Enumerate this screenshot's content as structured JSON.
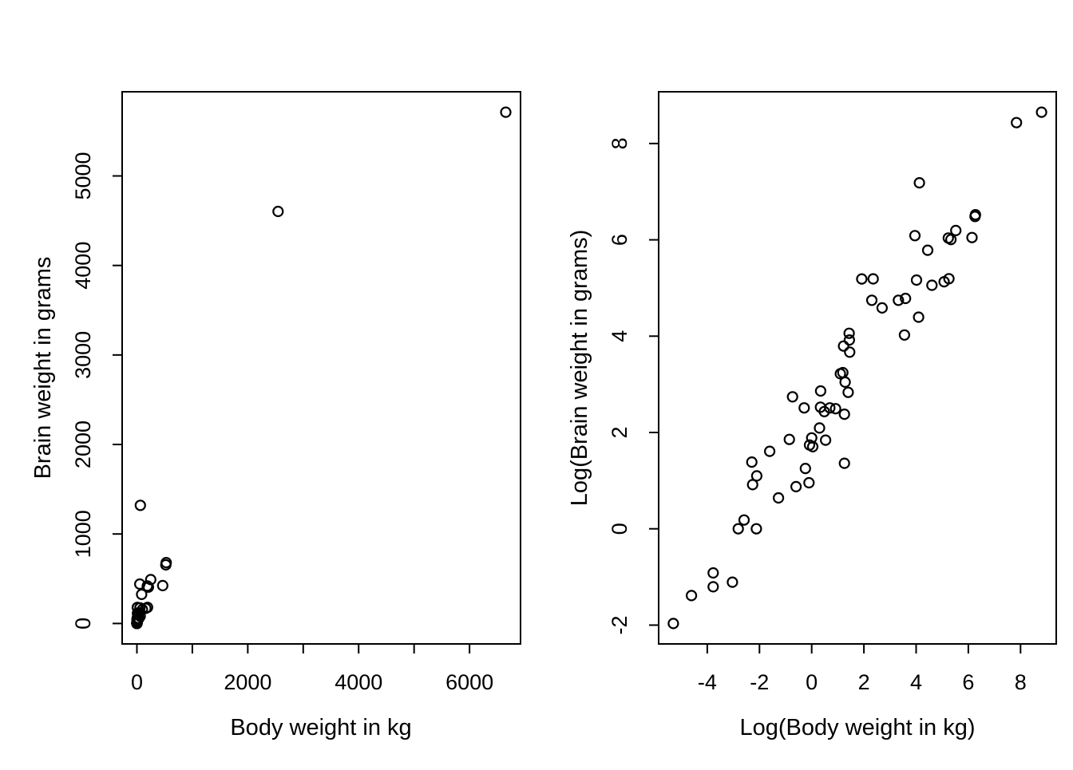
{
  "figure": {
    "background": "#ffffff",
    "foreground": "#000000",
    "marker_color": "#000000",
    "description": "Two side-by-side scatter plots of mammal brain weight versus body weight: raw scale (left) and natural-log scale (right)"
  },
  "chart_data": [
    {
      "type": "scatter",
      "title": "",
      "xlabel": "Body weight in kg",
      "ylabel": "Brain weight in grams",
      "marker": "open-circle",
      "grid": false,
      "legend": null,
      "xlim": [
        0.005,
        6654
      ],
      "ylim": [
        0.14,
        5712
      ],
      "axis_expansion": 0.04,
      "x_ticks": {
        "values": [
          0,
          1000,
          2000,
          3000,
          4000,
          5000,
          6000
        ],
        "labels": [
          "0",
          "",
          "2000",
          "",
          "4000",
          "",
          "6000"
        ]
      },
      "y_ticks": {
        "values": [
          0,
          1000,
          2000,
          3000,
          4000,
          5000
        ],
        "labels": [
          "0",
          "1000",
          "2000",
          "3000",
          "4000",
          "5000"
        ]
      },
      "points": [
        [
          3.385,
          44.5
        ],
        [
          0.48,
          15.5
        ],
        [
          1.35,
          8.1
        ],
        [
          465,
          423
        ],
        [
          36.33,
          119.5
        ],
        [
          27.66,
          115
        ],
        [
          14.83,
          98.2
        ],
        [
          1.04,
          5.5
        ],
        [
          4.19,
          58
        ],
        [
          0.425,
          6.4
        ],
        [
          0.101,
          4
        ],
        [
          0.92,
          5.7
        ],
        [
          1,
          6.6
        ],
        [
          0.005,
          0.14
        ],
        [
          0.06,
          1
        ],
        [
          3.5,
          10.8
        ],
        [
          2,
          12.3
        ],
        [
          1.7,
          6.3
        ],
        [
          2547,
          4603
        ],
        [
          0.023,
          0.3
        ],
        [
          187.1,
          419
        ],
        [
          521,
          655
        ],
        [
          0.785,
          3.5
        ],
        [
          10,
          115
        ],
        [
          3.3,
          25.6
        ],
        [
          0.2,
          5
        ],
        [
          1.41,
          17.5
        ],
        [
          529,
          680
        ],
        [
          207,
          406
        ],
        [
          85,
          325
        ],
        [
          0.75,
          12.3
        ],
        [
          62,
          1320
        ],
        [
          6654,
          5712
        ],
        [
          3.5,
          3.9
        ],
        [
          6.8,
          179
        ],
        [
          35,
          56
        ],
        [
          4.05,
          17
        ],
        [
          0.12,
          1
        ],
        [
          0.023,
          0.4
        ],
        [
          0.01,
          0.25
        ],
        [
          1.4,
          12.5
        ],
        [
          250,
          490
        ],
        [
          2.5,
          12.1
        ],
        [
          55.5,
          175
        ],
        [
          100,
          157
        ],
        [
          52.16,
          440
        ],
        [
          10.55,
          179.5
        ],
        [
          0.55,
          2.4
        ],
        [
          60,
          81
        ],
        [
          3.6,
          21
        ],
        [
          4.288,
          39.2
        ],
        [
          0.28,
          1.9
        ],
        [
          0.075,
          1.2
        ],
        [
          0.122,
          3
        ],
        [
          0.048,
          0.33
        ],
        [
          192,
          180
        ],
        [
          3,
          25
        ],
        [
          160,
          169
        ],
        [
          0.9,
          2.6
        ],
        [
          1.62,
          11.4
        ],
        [
          0.104,
          2.5
        ],
        [
          4.235,
          50.4
        ]
      ]
    },
    {
      "type": "scatter",
      "title": "",
      "xlabel": "Log(Body weight in kg)",
      "ylabel": "Log(Brain weight in grams)",
      "marker": "open-circle",
      "grid": false,
      "legend": null,
      "xlim": [
        -5.298,
        8.803
      ],
      "ylim": [
        -1.966,
        8.65
      ],
      "axis_expansion": 0.04,
      "x_ticks": {
        "values": [
          -4,
          -2,
          0,
          2,
          4,
          6,
          8
        ],
        "labels": [
          "-4",
          "-2",
          "0",
          "2",
          "4",
          "6",
          "8"
        ]
      },
      "y_ticks": {
        "values": [
          -2,
          0,
          2,
          4,
          6,
          8
        ],
        "labels": [
          "-2",
          "0",
          "2",
          "4",
          "6",
          "8"
        ]
      },
      "points": [
        [
          1.219,
          3.795
        ],
        [
          -0.734,
          2.741
        ],
        [
          0.3,
          2.092
        ],
        [
          6.142,
          6.047
        ],
        [
          3.593,
          4.783
        ],
        [
          3.32,
          4.745
        ],
        [
          2.697,
          4.587
        ],
        [
          0.039,
          1.705
        ],
        [
          1.433,
          4.06
        ],
        [
          -0.856,
          1.856
        ],
        [
          -2.293,
          1.386
        ],
        [
          -0.083,
          1.74
        ],
        [
          0,
          1.887
        ],
        [
          -5.298,
          -1.966
        ],
        [
          -2.813,
          0
        ],
        [
          1.253,
          2.38
        ],
        [
          0.693,
          2.51
        ],
        [
          0.531,
          1.841
        ],
        [
          7.843,
          8.434
        ],
        [
          -3.772,
          -1.204
        ],
        [
          5.232,
          6.038
        ],
        [
          6.256,
          6.485
        ],
        [
          -0.242,
          1.253
        ],
        [
          2.303,
          4.745
        ],
        [
          1.194,
          3.243
        ],
        [
          -1.609,
          1.609
        ],
        [
          0.344,
          2.862
        ],
        [
          6.271,
          6.522
        ],
        [
          5.333,
          6.006
        ],
        [
          4.443,
          5.784
        ],
        [
          -0.288,
          2.51
        ],
        [
          4.127,
          7.185
        ],
        [
          8.803,
          8.65
        ],
        [
          1.253,
          1.361
        ],
        [
          1.917,
          5.187
        ],
        [
          3.555,
          4.025
        ],
        [
          1.399,
          2.833
        ],
        [
          -2.12,
          0
        ],
        [
          -3.772,
          -0.916
        ],
        [
          -4.605,
          -1.386
        ],
        [
          0.336,
          2.526
        ],
        [
          5.521,
          6.194
        ],
        [
          0.916,
          2.493
        ],
        [
          4.016,
          5.165
        ],
        [
          4.605,
          5.056
        ],
        [
          3.954,
          6.087
        ],
        [
          2.356,
          5.19
        ],
        [
          -0.598,
          0.875
        ],
        [
          4.094,
          4.394
        ],
        [
          1.281,
          3.045
        ],
        [
          1.456,
          3.669
        ],
        [
          -1.273,
          0.642
        ],
        [
          -2.59,
          0.182
        ],
        [
          -2.104,
          1.099
        ],
        [
          -3.037,
          -1.109
        ],
        [
          5.257,
          5.193
        ],
        [
          1.099,
          3.219
        ],
        [
          5.075,
          5.13
        ],
        [
          -0.105,
          0.956
        ],
        [
          0.482,
          2.434
        ],
        [
          -2.263,
          0.916
        ],
        [
          1.443,
          3.92
        ]
      ]
    }
  ]
}
